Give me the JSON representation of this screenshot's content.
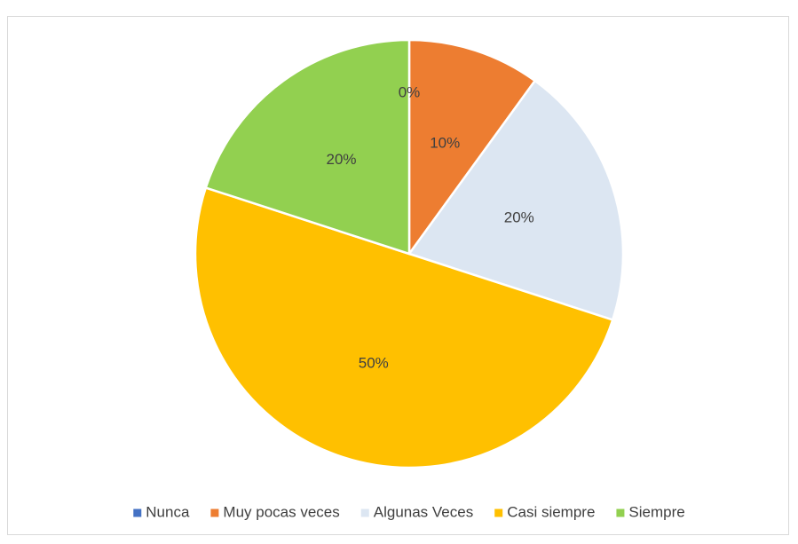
{
  "chart_data": {
    "type": "pie",
    "categories": [
      "Nunca",
      "Muy pocas veces",
      "Algunas Veces",
      "Casi siempre",
      "Siempre"
    ],
    "values": [
      0,
      10,
      20,
      50,
      20
    ],
    "value_labels": [
      "0%",
      "10%",
      "20%",
      "50%",
      "20%"
    ],
    "colors": [
      "#4472c4",
      "#ed7d31",
      "#dce6f2",
      "#ffc000",
      "#92d050"
    ],
    "legend": "bottom"
  }
}
